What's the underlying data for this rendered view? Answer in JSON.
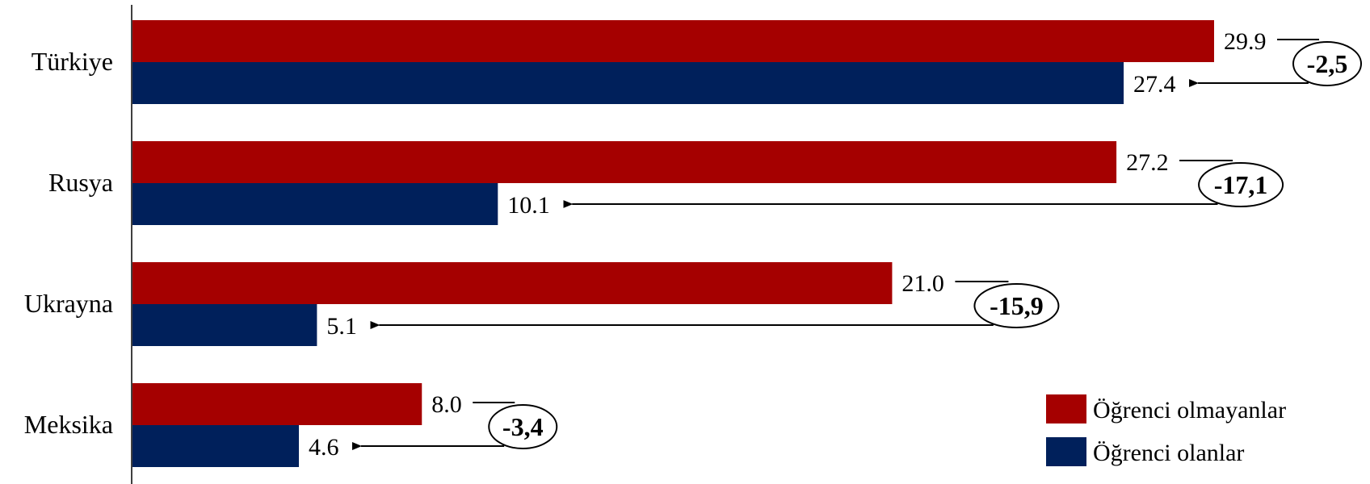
{
  "chart_data": {
    "type": "bar",
    "orientation": "horizontal",
    "categories": [
      "Türkiye",
      "Rusya",
      "Ukrayna",
      "Meksika"
    ],
    "series": [
      {
        "name": "Öğrenci olmayanlar",
        "color": "#a50000",
        "values": [
          29.9,
          27.2,
          21.0,
          8.0
        ],
        "labels": [
          "29.9",
          "27.2",
          "21.0",
          "8.0"
        ]
      },
      {
        "name": "Öğrenci olanlar",
        "color": "#00205b",
        "values": [
          27.4,
          10.1,
          5.1,
          4.6
        ],
        "labels": [
          "27.4",
          "10.1",
          "5.1",
          "4.6"
        ]
      }
    ],
    "differences": [
      "-2,5",
      "-17,1",
      "-15,9",
      "-3,4"
    ],
    "xlim": [
      0,
      32
    ],
    "title": "",
    "xlabel": "",
    "ylabel": "",
    "legend_position": "bottom-right",
    "grid": false
  }
}
